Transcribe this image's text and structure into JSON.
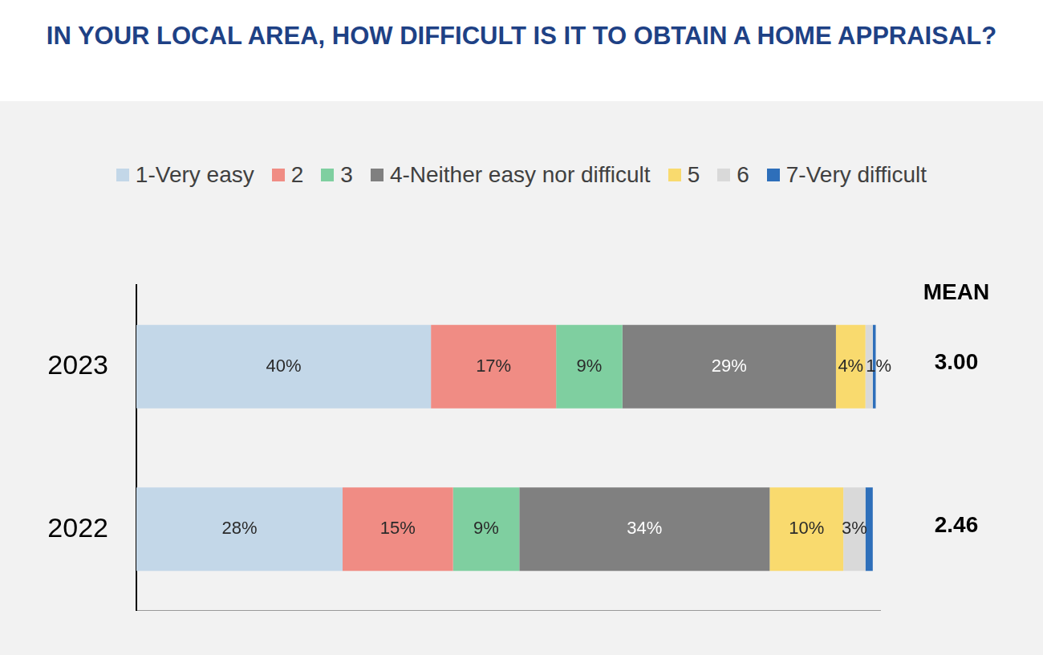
{
  "chart_data": {
    "type": "bar",
    "title": "IN YOUR LOCAL AREA, HOW DIFFICULT IS IT TO OBTAIN A HOME APPRAISAL?",
    "orientation": "horizontal",
    "stacked": true,
    "data_labels": true,
    "grid": false,
    "legend": "top",
    "tick_labels": "y",
    "categories": [
      "2023",
      "2022"
    ],
    "series": [
      {
        "name": "1-Very easy",
        "color": "#c3d7e8",
        "values": [
          40,
          28
        ],
        "value_labels": [
          "40%",
          "28%"
        ]
      },
      {
        "name": "2",
        "color": "#f08c84",
        "values": [
          17,
          15
        ],
        "value_labels": [
          "17%",
          "15%"
        ]
      },
      {
        "name": "3",
        "color": "#7fcfa0",
        "values": [
          9,
          9
        ],
        "value_labels": [
          "9%",
          "9%"
        ]
      },
      {
        "name": "4-Neither easy nor difficult",
        "color": "#808080",
        "values": [
          29,
          34
        ],
        "value_labels": [
          "29%",
          "34%"
        ]
      },
      {
        "name": "5",
        "color": "#f9da6e",
        "values": [
          4,
          10
        ],
        "value_labels": [
          "4%",
          "10%"
        ]
      },
      {
        "name": "6",
        "color": "#d9d9d9",
        "values": [
          1,
          3
        ],
        "value_labels": [
          "1%",
          "3%"
        ]
      },
      {
        "name": "7-Very difficult",
        "color": "#2e6fba",
        "values": [
          0.4,
          1
        ],
        "value_labels": [
          null,
          null
        ]
      }
    ],
    "xlim": [
      0,
      101
    ],
    "mean": {
      "title": "MEAN",
      "values": [
        3,
        2.46
      ],
      "value_labels": [
        "3.00",
        "2.46"
      ]
    }
  }
}
